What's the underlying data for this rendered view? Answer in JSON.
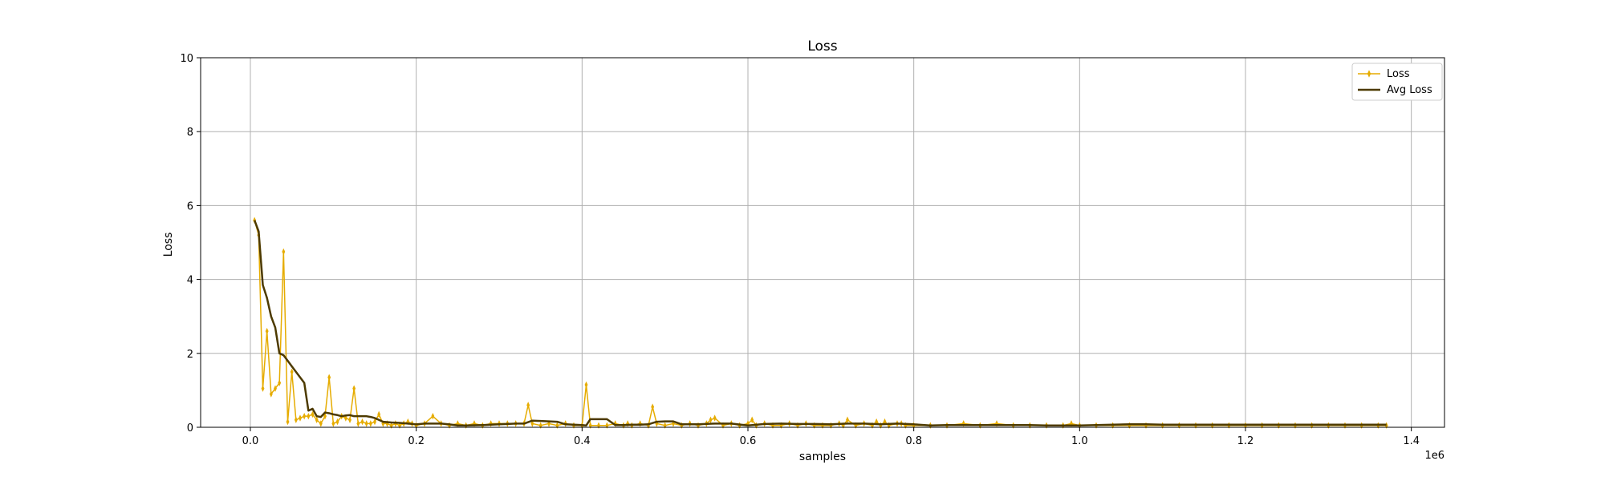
{
  "colors": {
    "loss": "#e6ac00",
    "avg_loss": "#4d3a00",
    "grid": "#b0b0b0",
    "axes": "#000000"
  },
  "chart_data": {
    "type": "line",
    "title": "Loss",
    "xlabel": "samples",
    "ylabel": "Loss",
    "x_offset_label": "1e6",
    "xlim": [
      -60000,
      1440000
    ],
    "ylim": [
      0,
      10
    ],
    "xticks": [
      0,
      200000,
      400000,
      600000,
      800000,
      1000000,
      1200000,
      1400000
    ],
    "xtick_labels": [
      "0.0",
      "0.2",
      "0.4",
      "0.6",
      "0.8",
      "1.0",
      "1.2",
      "1.4"
    ],
    "yticks": [
      0,
      2,
      4,
      6,
      8,
      10
    ],
    "ytick_labels": [
      "0",
      "2",
      "4",
      "6",
      "8",
      "10"
    ],
    "grid": true,
    "legend_position": "top-right",
    "series": [
      {
        "name": "Loss",
        "marker": "thin-diamond",
        "x": [
          5000,
          10000,
          15000,
          20000,
          25000,
          30000,
          35000,
          40000,
          45000,
          50000,
          55000,
          60000,
          65000,
          70000,
          75000,
          80000,
          85000,
          90000,
          95000,
          100000,
          105000,
          110000,
          115000,
          120000,
          125000,
          130000,
          135000,
          140000,
          145000,
          150000,
          155000,
          160000,
          165000,
          170000,
          175000,
          180000,
          185000,
          190000,
          195000,
          200000,
          210000,
          220000,
          230000,
          240000,
          250000,
          260000,
          270000,
          280000,
          290000,
          300000,
          310000,
          320000,
          330000,
          335000,
          340000,
          350000,
          360000,
          370000,
          380000,
          390000,
          400000,
          405000,
          410000,
          420000,
          430000,
          440000,
          450000,
          455000,
          460000,
          470000,
          480000,
          485000,
          490000,
          500000,
          510000,
          520000,
          530000,
          540000,
          550000,
          555000,
          560000,
          570000,
          580000,
          590000,
          600000,
          605000,
          610000,
          620000,
          630000,
          640000,
          650000,
          660000,
          670000,
          680000,
          690000,
          700000,
          710000,
          715000,
          720000,
          730000,
          740000,
          750000,
          755000,
          760000,
          765000,
          770000,
          780000,
          785000,
          790000,
          800000,
          820000,
          840000,
          860000,
          880000,
          900000,
          920000,
          940000,
          960000,
          980000,
          990000,
          1000000,
          1020000,
          1040000,
          1060000,
          1080000,
          1100000,
          1120000,
          1140000,
          1160000,
          1180000,
          1200000,
          1220000,
          1240000,
          1260000,
          1280000,
          1300000,
          1320000,
          1340000,
          1360000,
          1370000
        ],
        "y": [
          5.6,
          5.2,
          1.05,
          2.6,
          0.9,
          1.05,
          1.2,
          4.75,
          0.15,
          1.5,
          0.2,
          0.25,
          0.3,
          0.3,
          0.35,
          0.2,
          0.1,
          0.3,
          1.35,
          0.1,
          0.15,
          0.3,
          0.25,
          0.2,
          1.05,
          0.1,
          0.15,
          0.1,
          0.1,
          0.15,
          0.35,
          0.1,
          0.1,
          0.05,
          0.1,
          0.05,
          0.1,
          0.15,
          0.1,
          0.05,
          0.1,
          0.3,
          0.1,
          0.05,
          0.1,
          0.05,
          0.1,
          0.05,
          0.1,
          0.1,
          0.1,
          0.1,
          0.1,
          0.6,
          0.1,
          0.05,
          0.1,
          0.05,
          0.1,
          0.05,
          0.05,
          1.15,
          0.05,
          0.05,
          0.05,
          0.1,
          0.05,
          0.1,
          0.05,
          0.1,
          0.05,
          0.55,
          0.1,
          0.05,
          0.1,
          0.05,
          0.1,
          0.05,
          0.1,
          0.2,
          0.25,
          0.05,
          0.1,
          0.05,
          0.1,
          0.2,
          0.05,
          0.1,
          0.05,
          0.05,
          0.1,
          0.05,
          0.1,
          0.05,
          0.05,
          0.05,
          0.1,
          0.05,
          0.2,
          0.05,
          0.1,
          0.05,
          0.15,
          0.05,
          0.15,
          0.05,
          0.1,
          0.1,
          0.05,
          0.05,
          0.05,
          0.05,
          0.1,
          0.05,
          0.1,
          0.05,
          0.05,
          0.05,
          0.05,
          0.1,
          0.05,
          0.05,
          0.05,
          0.05,
          0.05,
          0.05,
          0.05,
          0.05,
          0.05,
          0.05,
          0.05,
          0.05,
          0.05,
          0.05,
          0.05,
          0.05,
          0.05,
          0.05,
          0.05,
          0.05
        ]
      },
      {
        "name": "Avg Loss",
        "x": [
          5000,
          10000,
          15000,
          20000,
          25000,
          30000,
          35000,
          40000,
          45000,
          50000,
          55000,
          60000,
          65000,
          70000,
          75000,
          80000,
          85000,
          90000,
          95000,
          100000,
          105000,
          110000,
          115000,
          120000,
          125000,
          130000,
          135000,
          140000,
          145000,
          150000,
          155000,
          160000,
          170000,
          180000,
          190000,
          200000,
          210000,
          220000,
          230000,
          240000,
          250000,
          260000,
          280000,
          300000,
          320000,
          330000,
          340000,
          350000,
          360000,
          370000,
          380000,
          390000,
          400000,
          405000,
          410000,
          420000,
          430000,
          440000,
          450000,
          460000,
          470000,
          480000,
          490000,
          500000,
          510000,
          520000,
          540000,
          560000,
          580000,
          600000,
          620000,
          640000,
          660000,
          680000,
          700000,
          720000,
          740000,
          760000,
          780000,
          800000,
          820000,
          840000,
          860000,
          880000,
          900000,
          920000,
          940000,
          960000,
          980000,
          1000000,
          1020000,
          1040000,
          1060000,
          1080000,
          1100000,
          1120000,
          1140000,
          1160000,
          1180000,
          1200000,
          1220000,
          1240000,
          1260000,
          1280000,
          1300000,
          1320000,
          1340000,
          1360000,
          1370000
        ],
        "y": [
          5.6,
          5.3,
          3.85,
          3.5,
          3.0,
          2.7,
          2.0,
          1.95,
          1.8,
          1.65,
          1.5,
          1.35,
          1.2,
          0.45,
          0.5,
          0.3,
          0.28,
          0.4,
          0.38,
          0.35,
          0.33,
          0.3,
          0.32,
          0.33,
          0.3,
          0.3,
          0.3,
          0.3,
          0.28,
          0.25,
          0.2,
          0.15,
          0.13,
          0.12,
          0.1,
          0.08,
          0.1,
          0.1,
          0.1,
          0.08,
          0.05,
          0.05,
          0.06,
          0.08,
          0.1,
          0.1,
          0.18,
          0.17,
          0.16,
          0.15,
          0.08,
          0.07,
          0.06,
          0.05,
          0.22,
          0.22,
          0.22,
          0.06,
          0.06,
          0.07,
          0.07,
          0.08,
          0.15,
          0.16,
          0.16,
          0.08,
          0.08,
          0.1,
          0.1,
          0.05,
          0.09,
          0.1,
          0.09,
          0.09,
          0.08,
          0.1,
          0.1,
          0.08,
          0.1,
          0.08,
          0.05,
          0.06,
          0.06,
          0.06,
          0.06,
          0.06,
          0.06,
          0.05,
          0.05,
          0.05,
          0.06,
          0.07,
          0.08,
          0.08,
          0.07,
          0.07,
          0.07,
          0.07,
          0.07,
          0.07,
          0.07,
          0.07,
          0.07,
          0.07,
          0.07,
          0.07,
          0.07,
          0.07,
          0.07
        ]
      }
    ]
  }
}
